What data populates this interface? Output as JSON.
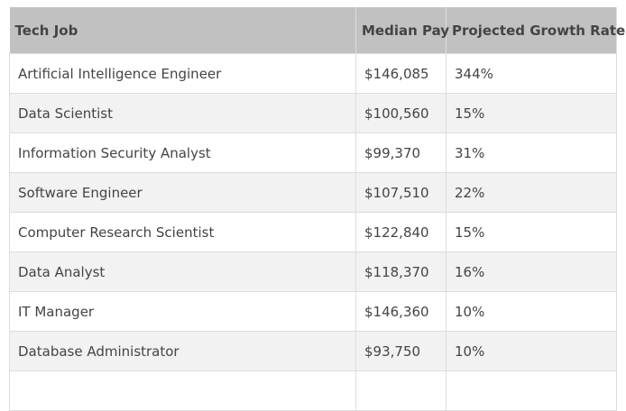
{
  "table": {
    "headers": [
      "Tech Job",
      "Median Pay",
      "Projected Growth Rate"
    ],
    "rows": [
      [
        "Artificial Intelligence Engineer",
        "$146,085",
        "344%"
      ],
      [
        "Data Scientist",
        "$100,560",
        "15%"
      ],
      [
        "Information Security Analyst",
        "$99,370",
        "31%"
      ],
      [
        "Software Engineer",
        "$107,510",
        "22%"
      ],
      [
        "Computer Research Scientist",
        "$122,840",
        "15%"
      ],
      [
        "Data Analyst",
        "$118,370",
        "16%"
      ],
      [
        "IT Manager",
        "$146,360",
        "10%"
      ],
      [
        "Database Administrator",
        "$93,750",
        "10%"
      ]
    ]
  }
}
